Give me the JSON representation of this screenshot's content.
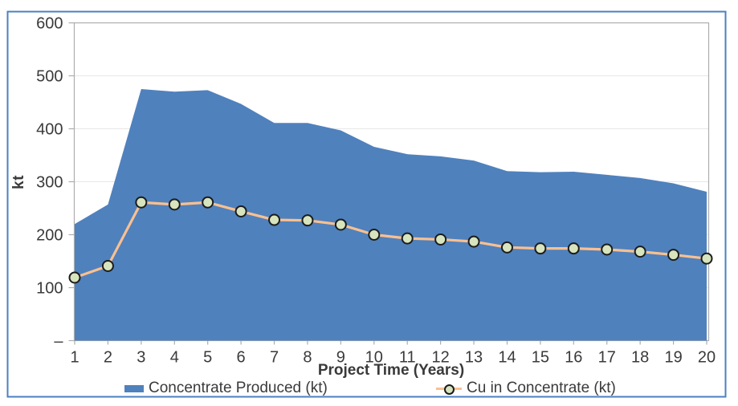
{
  "chart": {
    "y_axis_title": "kt",
    "x_axis_title": "Project Time (Years)",
    "y_tick_labels": [
      "–",
      "100",
      "200",
      "300",
      "400",
      "500",
      "600"
    ],
    "colors": {
      "area_blue": "#4F81BD",
      "line_peach": "#FAC090",
      "marker_fill": "#D7E4BD",
      "marker_stroke": "#1C1C1C",
      "chart_border": "#4A80C2",
      "axis_gray": "#ADADAD",
      "gridline_gray": "#E7E7E7",
      "text_color": "#3A3A3A"
    }
  },
  "legend": {
    "items": [
      {
        "label": "Concentrate Produced (kt)",
        "swatch": "area",
        "color": "#4F81BD"
      },
      {
        "label": "Cu in Concentrate (kt)",
        "swatch": "line-marker",
        "line_color": "#FAC090",
        "marker_fill": "#D7E4BD",
        "marker_stroke": "#1C1C1C"
      }
    ]
  },
  "chart_data": {
    "type": "area",
    "title": "",
    "xlabel": "Project Time (Years)",
    "ylabel": "kt",
    "x": [
      1,
      2,
      3,
      4,
      5,
      6,
      7,
      8,
      9,
      10,
      11,
      12,
      13,
      14,
      15,
      16,
      17,
      18,
      19,
      20
    ],
    "series": [
      {
        "name": "Concentrate Produced (kt)",
        "type": "area",
        "color": "#4F81BD",
        "values": [
          220,
          257,
          475,
          470,
          473,
          447,
          411,
          411,
          397,
          366,
          352,
          348,
          340,
          320,
          318,
          319,
          313,
          307,
          297,
          281
        ]
      },
      {
        "name": "Cu in Concentrate (kt)",
        "type": "line",
        "color": "#FAC090",
        "marker": "circle",
        "marker_fill": "#D7E4BD",
        "values": [
          119,
          141,
          261,
          257,
          261,
          244,
          228,
          227,
          219,
          200,
          193,
          191,
          187,
          176,
          174,
          174,
          172,
          168,
          162,
          155
        ]
      }
    ],
    "ylim": [
      0,
      600
    ],
    "yticks": [
      0,
      100,
      200,
      300,
      400,
      500,
      600
    ],
    "zero_tick_display": "–",
    "grid": true,
    "legend_position": "bottom"
  }
}
